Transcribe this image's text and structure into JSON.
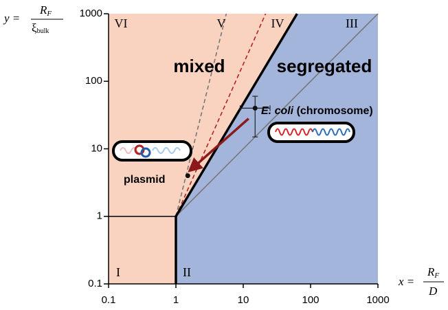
{
  "chart_data": {
    "type": "region-diagram",
    "xlim": [
      0.1,
      1000
    ],
    "ylim": [
      0.1,
      1000
    ],
    "log": true,
    "xticks": [
      0.1,
      1,
      10,
      100,
      1000
    ],
    "yticks": [
      0.1,
      1,
      10,
      100,
      1000
    ],
    "y_label": {
      "lhs": "y =",
      "num": "R",
      "num_sub": "F",
      "den": "ξ",
      "den_sub": "bulk"
    },
    "x_label": {
      "lhs": "x =",
      "num": "R",
      "num_sub": "F",
      "den": "D"
    },
    "fill_colors": {
      "mixed": "#f9d3c0",
      "segregated": "#a4b5dc"
    },
    "boundary": {
      "x": [
        1,
        1,
        63
      ],
      "y": [
        0.1,
        1,
        1000
      ],
      "color": "#000000"
    },
    "lines": [
      {
        "x": [
          0.1,
          1
        ],
        "y": [
          1,
          1
        ],
        "color": "#000000",
        "dashed": false
      },
      {
        "x": [
          1,
          1000
        ],
        "y": [
          1,
          1000
        ],
        "color": "#777777",
        "dashed": false
      },
      {
        "x": [
          1,
          5.6
        ],
        "y": [
          1,
          1000
        ],
        "color": "#777777",
        "dashed": true
      },
      {
        "x": [
          1,
          21.5
        ],
        "y": [
          1,
          1000
        ],
        "color": "#b22222",
        "dashed": true
      }
    ],
    "regions": [
      "I",
      "II",
      "III",
      "IV",
      "V",
      "VI"
    ],
    "mixed_label": "mixed",
    "segregated_label": "segregated",
    "points": [
      {
        "name": "E. coli",
        "suffix": "(chromosome)",
        "x": 15,
        "y": 40,
        "xrange": [
          9,
          25
        ],
        "yrange": [
          15,
          60
        ]
      },
      {
        "name": "plasmid",
        "x": 1.5,
        "y": 4
      }
    ],
    "arrow": {
      "x": [
        12,
        1.7
      ],
      "y": [
        28,
        5
      ],
      "color": "#8b1a1a"
    }
  }
}
